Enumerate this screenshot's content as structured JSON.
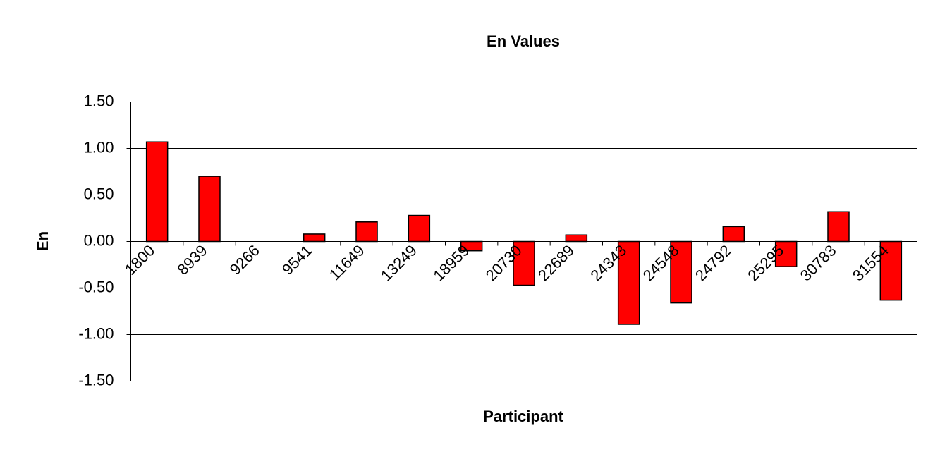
{
  "chart_data": {
    "type": "bar",
    "title": "En Values",
    "x_label": "Participant",
    "y_label": "En",
    "categories": [
      "1800",
      "8939",
      "9266",
      "9541",
      "11649",
      "13249",
      "18959",
      "20730",
      "22689",
      "24343",
      "24548",
      "24792",
      "25295",
      "30783",
      "31554"
    ],
    "values": [
      1.07,
      0.7,
      0,
      0.08,
      0.21,
      0.28,
      -0.1,
      -0.47,
      0.07,
      -0.89,
      -0.66,
      0.16,
      -0.27,
      0.32,
      -0.63
    ],
    "color": "#ff0000",
    "ylim": [
      -1.5,
      1.5
    ],
    "yticks": [
      {
        "value": -1.5,
        "label": "-1.50"
      },
      {
        "value": -1,
        "label": "-1.00"
      },
      {
        "value": -0.5,
        "label": "-0.50"
      },
      {
        "value": 0,
        "label": "0.00"
      },
      {
        "value": 0.5,
        "label": "0.50"
      },
      {
        "value": 1,
        "label": "1.00"
      },
      {
        "value": 1.5,
        "label": "1.50"
      }
    ],
    "grid": true
  }
}
